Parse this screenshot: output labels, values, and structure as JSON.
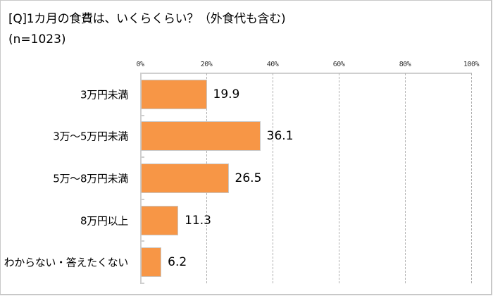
{
  "header": {
    "title": "[Q]1カ月の食費は、いくらくらい？（外食代も含む)",
    "sample": "(n=1023)"
  },
  "axis": {
    "ticks": [
      "0%",
      "20%",
      "40%",
      "60%",
      "80%",
      "100%"
    ]
  },
  "categories": [
    {
      "label": "3万円未満",
      "value": "19.9"
    },
    {
      "label": "3万～5万円未満",
      "value": "36.1"
    },
    {
      "label": "5万～8万円未満",
      "value": "26.5"
    },
    {
      "label": "8万円以上",
      "value": "11.3"
    },
    {
      "label": "わからない・答えたくない",
      "value": "6.2"
    }
  ],
  "colors": {
    "bar": "#f79646",
    "bar_border": "#c8c8c8",
    "grid": "#b0b0b0"
  },
  "chart_data": {
    "type": "bar",
    "orientation": "horizontal",
    "title": "[Q]1カ月の食費は、いくらくらい？（外食代も含む)",
    "subtitle": "(n=1023)",
    "categories": [
      "3万円未満",
      "3万～5万円未満",
      "5万～8万円未満",
      "8万円以上",
      "わからない・答えたくない"
    ],
    "values": [
      19.9,
      36.1,
      26.5,
      11.3,
      6.2
    ],
    "xlabel": "",
    "ylabel": "",
    "xlim": [
      0,
      100
    ],
    "x_tick_labels": [
      "0%",
      "20%",
      "40%",
      "60%",
      "80%",
      "100%"
    ],
    "grid": "vertical dashed",
    "legend": "none",
    "data_labels": true
  }
}
